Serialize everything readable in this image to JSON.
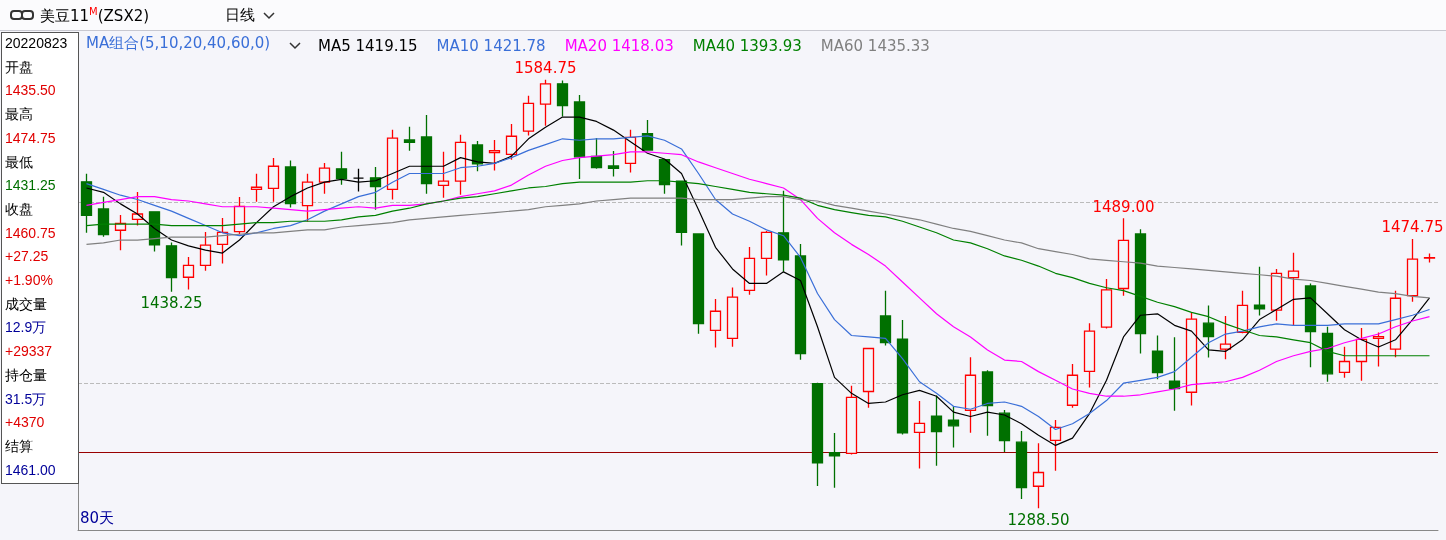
{
  "chart_data": {
    "type": "candlestick",
    "title": "美豆11$^{M}$(ZSX2)",
    "subtitle": "日线",
    "legend_title": "MA组合(5,10,20,40,60,0)",
    "annotations": [
      "20220823",
      "开盘",
      "1435.50",
      "最高",
      "1474.75",
      "最低",
      "1431.25",
      "收盘",
      "1460.75",
      "+27.25",
      "+1.90%",
      "成交量",
      "12.9万",
      "+29337",
      "持仓量",
      "31.5万",
      "+4370",
      "结算",
      "1461.00",
      "80天",
      {
        "text": "1584.75",
        "y": 1584.75
      },
      {
        "text": "1438.25",
        "y": 1438.25
      },
      {
        "text": "1489.00",
        "y": 1489
      },
      {
        "text": "1288.50",
        "y": 1288.5
      },
      {
        "text": "1474.75",
        "y": 1474.75
      }
    ],
    "categories": [
      null,
      null,
      null,
      null,
      null,
      null,
      null,
      null,
      null,
      null,
      null,
      null,
      null,
      null,
      null,
      null,
      null,
      null,
      null,
      null,
      null,
      null,
      null,
      null,
      null,
      null,
      null,
      null,
      null,
      null,
      null,
      null,
      null,
      null,
      null,
      null,
      null,
      null,
      null,
      null,
      null,
      null,
      null,
      null,
      null,
      null,
      null,
      null,
      null,
      null,
      null,
      null,
      null,
      null,
      null,
      null,
      null,
      null,
      null,
      null,
      null,
      null,
      null,
      null,
      null,
      null,
      null,
      null,
      null,
      null,
      null,
      null,
      null,
      null,
      null,
      null,
      null,
      null,
      null,
      null
    ],
    "series": [
      {
        "type": "candlestick",
        "ohlc": [
          [
            1514.25,
            1519.75,
            1479,
            1491
          ],
          [
            1495.5,
            1504,
            1476.25,
            1477.75
          ],
          [
            1480.75,
            1491.25,
            1467,
            1485.5
          ],
          [
            1488.25,
            1507.25,
            1484,
            1492
          ],
          [
            1493.5,
            1493.5,
            1466,
            1470.75
          ],
          [
            1470,
            1472.25,
            1438.25,
            1448
          ],
          [
            1448.25,
            1462.25,
            1439.75,
            1456.5
          ],
          [
            1456.5,
            1479.5,
            1452.75,
            1470.5
          ],
          [
            1471,
            1489.25,
            1457.75,
            1479.25
          ],
          [
            1479.75,
            1503.75,
            1478.25,
            1497.25
          ],
          [
            1509,
            1519.75,
            1500.5,
            1510.5
          ],
          [
            1509.75,
            1530.75,
            1500.5,
            1525
          ],
          [
            1524.5,
            1529,
            1496.5,
            1499.25
          ],
          [
            1497.75,
            1519.75,
            1486.75,
            1514
          ],
          [
            1514,
            1527.25,
            1506,
            1523.75
          ],
          [
            1523.25,
            1535,
            1512.25,
            1516.5
          ],
          [
            1516.75,
            1523.25,
            1507.5,
            1516.75
          ],
          [
            1517,
            1524.5,
            1495,
            1511
          ],
          [
            1509,
            1550.25,
            1502,
            1544.5
          ],
          [
            1543.25,
            1552.25,
            1535.75,
            1541.5
          ],
          [
            1545.25,
            1560.5,
            1506,
            1513
          ],
          [
            1511.75,
            1535,
            1503.25,
            1514.75
          ],
          [
            1514.75,
            1546.75,
            1505.25,
            1541.5
          ],
          [
            1539.75,
            1542.5,
            1521.5,
            1526.75
          ],
          [
            1534.5,
            1543.25,
            1522,
            1535.75
          ],
          [
            1533.25,
            1554.25,
            1529.5,
            1545.75
          ],
          [
            1549.25,
            1573.75,
            1546.25,
            1568.5
          ],
          [
            1568,
            1584.75,
            1553,
            1582
          ],
          [
            1582,
            1584.25,
            1559.5,
            1567
          ],
          [
            1569.5,
            1574.25,
            1516.25,
            1531.5
          ],
          [
            1531.75,
            1544.5,
            1523.25,
            1524
          ],
          [
            1525.25,
            1535.5,
            1518,
            1523.5
          ],
          [
            1527,
            1550.25,
            1520.75,
            1545
          ],
          [
            1547.5,
            1557,
            1536.25,
            1536.25
          ],
          [
            1529.5,
            1529.5,
            1506,
            1512.25
          ],
          [
            1514.75,
            1515,
            1470.25,
            1479.25
          ],
          [
            1478.25,
            1478.75,
            1409.25,
            1416.25
          ],
          [
            1411.5,
            1433.25,
            1399.75,
            1424.75
          ],
          [
            1406,
            1441.25,
            1400.25,
            1434.5
          ],
          [
            1439.25,
            1469.25,
            1436.25,
            1461.25
          ],
          [
            1461.25,
            1480.25,
            1449.5,
            1479.25
          ],
          [
            1479,
            1508,
            1452,
            1460.25
          ],
          [
            1463,
            1471.25,
            1391.25,
            1395.5
          ],
          [
            1374.75,
            1375.25,
            1304,
            1320
          ],
          [
            1327,
            1340.5,
            1302.75,
            1324.75
          ],
          [
            1326.5,
            1373.25,
            1325.75,
            1365.25
          ],
          [
            1369.25,
            1399,
            1358,
            1399
          ],
          [
            1421.5,
            1439,
            1401,
            1403
          ],
          [
            1405.5,
            1418.75,
            1339.5,
            1340.75
          ],
          [
            1341,
            1362.75,
            1316,
            1347.25
          ],
          [
            1352.25,
            1366.5,
            1318,
            1341.5
          ],
          [
            1349.5,
            1359.25,
            1330.5,
            1345.5
          ],
          [
            1356.25,
            1393,
            1340.75,
            1380.5
          ],
          [
            1382.75,
            1384,
            1338.75,
            1359.5
          ],
          [
            1354.25,
            1356.5,
            1327.5,
            1335.25
          ],
          [
            1334.25,
            1342,
            1295,
            1302.75
          ],
          [
            1303.75,
            1333.5,
            1288.5,
            1313.25
          ],
          [
            1335.5,
            1349.5,
            1314.5,
            1344.5
          ],
          [
            1359.75,
            1388.25,
            1358,
            1380.5
          ],
          [
            1383.25,
            1416.5,
            1372,
            1411
          ],
          [
            1413.75,
            1447,
            1412.75,
            1439.5
          ],
          [
            1440.5,
            1489,
            1435.5,
            1473.75
          ],
          [
            1478.25,
            1481.5,
            1395.5,
            1409.25
          ],
          [
            1397.25,
            1408,
            1377.75,
            1382.25
          ],
          [
            1376.5,
            1406.75,
            1356,
            1371.25
          ],
          [
            1368.75,
            1423.75,
            1359.5,
            1419.25
          ],
          [
            1416.5,
            1428.75,
            1392.75,
            1407.25
          ],
          [
            1398.5,
            1421.5,
            1391.5,
            1402
          ],
          [
            1410.25,
            1439,
            1409.5,
            1428.75
          ],
          [
            1429,
            1455.5,
            1421.75,
            1426.5
          ],
          [
            1425.5,
            1454,
            1418.25,
            1451
          ],
          [
            1448,
            1465.25,
            1414.75,
            1452.5
          ],
          [
            1442.25,
            1444,
            1386,
            1410.75
          ],
          [
            1409.5,
            1414,
            1376,
            1381.5
          ],
          [
            1382.5,
            1400.25,
            1378.75,
            1390
          ],
          [
            1390,
            1413.25,
            1376.75,
            1405.25
          ],
          [
            1406,
            1410,
            1386.5,
            1407.25
          ],
          [
            1398.5,
            1439,
            1393,
            1433.75
          ],
          [
            1435.5,
            1474.75,
            1431.25,
            1460.75
          ],
          [
            1461.5,
            1464.75,
            1458.5,
            1461.75
          ]
        ],
        "colors": [
          "#007000",
          "#007000",
          "#ff0000",
          "#ff0000",
          "#007000",
          "#007000",
          "#ff0000",
          "#ff0000",
          "#ff0000",
          "#ff0000",
          "#ff0000",
          "#ff0000",
          "#007000",
          "#ff0000",
          "#ff0000",
          "#007000",
          "#000000",
          "#007000",
          "#ff0000",
          "#007000",
          "#007000",
          "#ff0000",
          "#ff0000",
          "#007000",
          "#ff0000",
          "#ff0000",
          "#ff0000",
          "#ff0000",
          "#007000",
          "#007000",
          "#007000",
          "#007000",
          "#ff0000",
          "#007000",
          "#007000",
          "#007000",
          "#007000",
          "#ff0000",
          "#ff0000",
          "#ff0000",
          "#ff0000",
          "#007000",
          "#007000",
          "#007000",
          "#007000",
          "#ff0000",
          "#ff0000",
          "#007000",
          "#007000",
          "#ff0000",
          "#007000",
          "#007000",
          "#ff0000",
          "#007000",
          "#007000",
          "#007000",
          "#ff0000",
          "#ff0000",
          "#ff0000",
          "#ff0000",
          "#ff0000",
          "#ff0000",
          "#007000",
          "#007000",
          "#007000",
          "#ff0000",
          "#007000",
          "#ff0000",
          "#ff0000",
          "#007000",
          "#ff0000",
          "#ff0000",
          "#007000",
          "#007000",
          "#ff0000",
          "#ff0000",
          "#ff0000",
          "#ff0000",
          "#ff0000",
          "#ff0000"
        ]
      },
      {
        "type": "line",
        "name": "MA5 1419.15",
        "color": "#000000",
        "values": [
          1510,
          1507,
          1499,
          1492,
          1482,
          1474,
          1470,
          1467,
          1465,
          1474,
          1486,
          1497,
          1504,
          1510,
          1514,
          1516,
          1514,
          1515,
          1520,
          1525,
          1525,
          1525,
          1531,
          1528,
          1527,
          1532,
          1544,
          1552,
          1559,
          1559,
          1556,
          1550,
          1542,
          1534,
          1530,
          1520,
          1495,
          1469,
          1454,
          1444,
          1444,
          1452,
          1446,
          1414,
          1379,
          1368,
          1361,
          1362,
          1367,
          1370,
          1366,
          1355,
          1352,
          1355,
          1353,
          1347,
          1339,
          1332,
          1337,
          1354,
          1377,
          1407,
          1422,
          1423,
          1415,
          1411,
          1398,
          1397,
          1405,
          1419,
          1426,
          1433,
          1434,
          1423,
          1412,
          1405,
          1400,
          1405,
          1419,
          1434
        ]
      },
      {
        "type": "line",
        "name": "MA10 1421.78",
        "color": "#3a6fd8",
        "values": [
          1513,
          1509,
          1505,
          1502,
          1498,
          1494,
          1489,
          1484,
          1479,
          1477,
          1479,
          1482,
          1484,
          1488,
          1494,
          1499,
          1504,
          1507,
          1514,
          1520,
          1520,
          1520,
          1524,
          1525,
          1527,
          1531,
          1536,
          1540,
          1544,
          1543,
          1544,
          1544,
          1545,
          1546,
          1543,
          1537,
          1520,
          1502,
          1492,
          1487,
          1481,
          1477,
          1462,
          1437,
          1419,
          1408,
          1407,
          1406,
          1392,
          1376,
          1368,
          1359,
          1357,
          1361,
          1362,
          1359,
          1352,
          1343,
          1347,
          1354,
          1363,
          1375,
          1377,
          1379,
          1383,
          1393,
          1403,
          1409,
          1411,
          1414,
          1416,
          1415,
          1415,
          1415,
          1416,
          1416,
          1416,
          1419,
          1422,
          1426
        ]
      },
      {
        "type": "line",
        "name": "MA20 1418.03",
        "color": "#ff00ff",
        "values": [
          1498,
          1500,
          1502,
          1504,
          1504,
          1502,
          1501,
          1499,
          1497,
          1497,
          1497,
          1496,
          1495,
          1494,
          1495,
          1496,
          1497,
          1496,
          1498,
          1498,
          1499,
          1501,
          1504,
          1506,
          1508,
          1512,
          1519,
          1525,
          1529,
          1531,
          1532,
          1533,
          1535,
          1535,
          1534,
          1533,
          1528,
          1524,
          1520,
          1516,
          1513,
          1510,
          1502,
          1489,
          1479,
          1471,
          1464,
          1456,
          1445,
          1434,
          1423,
          1414,
          1407,
          1398,
          1391,
          1390,
          1383,
          1377,
          1371,
          1368,
          1366,
          1366,
          1367,
          1369,
          1371,
          1374,
          1375,
          1376,
          1379,
          1384,
          1390,
          1394,
          1397,
          1399,
          1403,
          1406,
          1409,
          1414,
          1418,
          1421
        ]
      },
      {
        "type": "line",
        "name": "MA40 1393.93",
        "color": "#008000",
        "values": [
          1484,
          1485,
          1485,
          1485,
          1485,
          1484,
          1484,
          1484,
          1484,
          1485,
          1486,
          1486,
          1487,
          1487,
          1487,
          1488,
          1490,
          1491,
          1494,
          1496,
          1499,
          1501,
          1503,
          1504,
          1506,
          1508,
          1510,
          1511,
          1513,
          1514,
          1514,
          1514,
          1514,
          1515,
          1515,
          1514,
          1513,
          1511,
          1509,
          1507,
          1506,
          1505,
          1503,
          1498,
          1495,
          1493,
          1491,
          1490,
          1487,
          1483,
          1479,
          1474,
          1472,
          1468,
          1463,
          1460,
          1456,
          1451,
          1448,
          1444,
          1441,
          1439,
          1435,
          1431,
          1428,
          1424,
          1421,
          1416,
          1412,
          1408,
          1407,
          1405,
          1403,
          1397,
          1394,
          1394,
          1394,
          1394,
          1394,
          1394
        ]
      },
      {
        "type": "line",
        "name": "MA60 1435.33",
        "color": "#808080",
        "values": [
          1471,
          1472,
          1474,
          1474,
          1475,
          1476,
          1476,
          1476,
          1477,
          1478,
          1479,
          1479,
          1480,
          1481,
          1481,
          1483,
          1484,
          1485,
          1486,
          1488,
          1489,
          1490,
          1491,
          1492,
          1493,
          1494,
          1495,
          1497,
          1498,
          1499,
          1501,
          1502,
          1503,
          1503,
          1503,
          1503,
          1502,
          1502,
          1502,
          1503,
          1504,
          1504,
          1502,
          1501,
          1498,
          1496,
          1494,
          1492,
          1490,
          1488,
          1485,
          1482,
          1480,
          1477,
          1474,
          1472,
          1468,
          1466,
          1464,
          1461,
          1460,
          1459,
          1458,
          1456,
          1455,
          1454,
          1453,
          1452,
          1451,
          1450,
          1449,
          1447,
          1446,
          1444,
          1442,
          1440,
          1438,
          1437,
          1435,
          1434
        ]
      }
    ],
    "ylim": [
      1273.5,
      1601.25
    ],
    "yticks": [
      {
        "value": 1500,
        "label": null
      },
      {
        "value": 1375,
        "label": null
      }
    ],
    "grid": "y",
    "legend": "top left",
    "marker": "none",
    "line_style": "solid",
    "ref_lines": [
      {
        "axis": "y",
        "value": 1327.5,
        "color": "#990000"
      }
    ]
  }
}
